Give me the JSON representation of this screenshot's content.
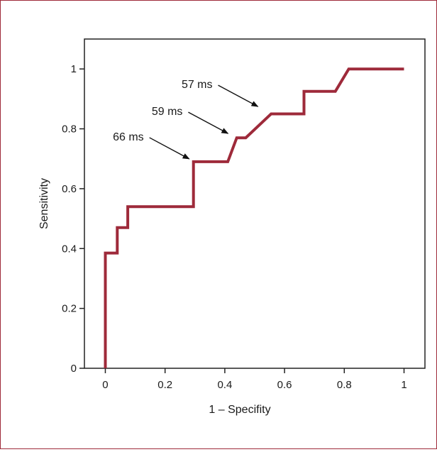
{
  "chart_data": {
    "type": "line",
    "title": "",
    "xlabel": "1 – Specifity",
    "ylabel": "Sensitivity",
    "xlim": [
      -0.07,
      1.07
    ],
    "ylim": [
      0,
      1.1
    ],
    "xticks": [
      0,
      0.2,
      0.4,
      0.6,
      0.8,
      1
    ],
    "xtick_labels": [
      "0",
      "0.2",
      "0.4",
      "0.6",
      "0.8",
      "1"
    ],
    "yticks": [
      0,
      0.2,
      0.4,
      0.6,
      0.8,
      1
    ],
    "ytick_labels": [
      "0",
      "0.2",
      "0.4",
      "0.6",
      "0.8",
      "1"
    ],
    "grid": false,
    "line_color": "#9e2a3a",
    "series": [
      {
        "x": [
          0,
          0,
          0.04,
          0.04,
          0.075,
          0.075,
          0.295,
          0.295,
          0.41,
          0.44,
          0.47,
          0.555,
          0.665,
          0.665,
          0.77,
          0.815,
          1.0
        ],
        "y": [
          0,
          0.385,
          0.385,
          0.47,
          0.47,
          0.54,
          0.54,
          0.69,
          0.69,
          0.77,
          0.77,
          0.85,
          0.85,
          0.925,
          0.925,
          1.0,
          1.0
        ]
      }
    ],
    "annotations": [
      {
        "text": "66 ms",
        "x": 0.295,
        "y": 0.69
      },
      {
        "text": "59 ms",
        "x": 0.425,
        "y": 0.775
      },
      {
        "text": "57 ms",
        "x": 0.525,
        "y": 0.865
      }
    ]
  }
}
